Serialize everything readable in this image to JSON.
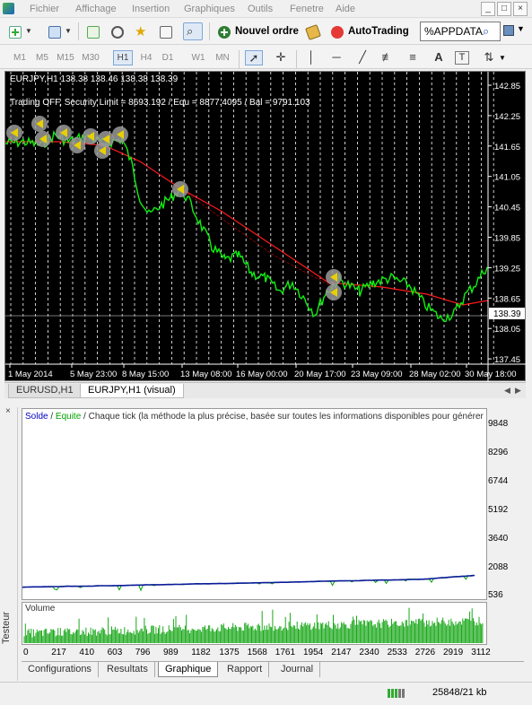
{
  "menu": {
    "items": [
      "Fichier",
      "Affichage",
      "Insertion",
      "Graphiques",
      "Outils",
      "Fenetre",
      "Aide"
    ],
    "window_controls": [
      "_",
      "□",
      "×"
    ]
  },
  "toolbar": {
    "new_order_label": "Nouvel ordre",
    "autotrading_label": "AutoTrading",
    "search_value": "%APPDATA"
  },
  "timeframes": {
    "items": [
      "M1",
      "M5",
      "M15",
      "M30",
      "H1",
      "H4",
      "D1",
      "W1",
      "MN"
    ],
    "active": "H1"
  },
  "chart": {
    "symbol_line": "EURJPY,H1  138.38 138.46 138.38 138.39",
    "status_line": "Trading OFF, Security Limit = 8693.192  /  Equ = 8877.4095  /  Bal = 9791.103",
    "current_price": "138.39",
    "y_ticks": [
      "142.85",
      "142.25",
      "141.65",
      "141.05",
      "140.45",
      "139.85",
      "139.25",
      "138.65",
      "138.05",
      "137.45"
    ],
    "x_ticks": [
      "1 May 2014",
      "5 May 23:00",
      "8 May 15:00",
      "13 May 08:00",
      "16 May 00:00",
      "20 May 17:00",
      "23 May 09:00",
      "28 May 02:00",
      "30 May 18:00"
    ],
    "colors": {
      "background": "#000000",
      "price": "#00ff00",
      "ma": "#ff0000",
      "grid": "#ffffff"
    }
  },
  "chart_tabs": [
    "EURUSD,H1",
    "EURJPY,H1 (visual)"
  ],
  "tester": {
    "side_label": "Testeur",
    "close_glyph": "×",
    "header_solde": "Solde",
    "header_sep": " / ",
    "header_equite": "Equite",
    "header_rest": " / Chaque tick (la méthode la plus précise, basée sur toutes les informations disponibles pour générer chaque tic",
    "volume_label": "Volume",
    "tabs": [
      "Configurations",
      "Resultats",
      "Graphique",
      "Rapport",
      "Journal"
    ],
    "active_tab": "Graphique",
    "chart_data": {
      "type": "line",
      "series": [
        {
          "name": "Solde",
          "color": "#0000a0"
        },
        {
          "name": "Equite",
          "color": "#00a000"
        }
      ],
      "y_ticks": [
        "9848",
        "8296",
        "6744",
        "5192",
        "3640",
        "2088",
        "536"
      ],
      "x_ticks": [
        "0",
        "217",
        "410",
        "603",
        "796",
        "989",
        "1182",
        "1375",
        "1568",
        "1761",
        "1954",
        "2147",
        "2340",
        "2533",
        "2726",
        "2919",
        "3112"
      ],
      "ylim": [
        536,
        9848
      ],
      "xlim": [
        0,
        3200
      ]
    }
  },
  "status": {
    "traffic": "25848/21 kb"
  }
}
